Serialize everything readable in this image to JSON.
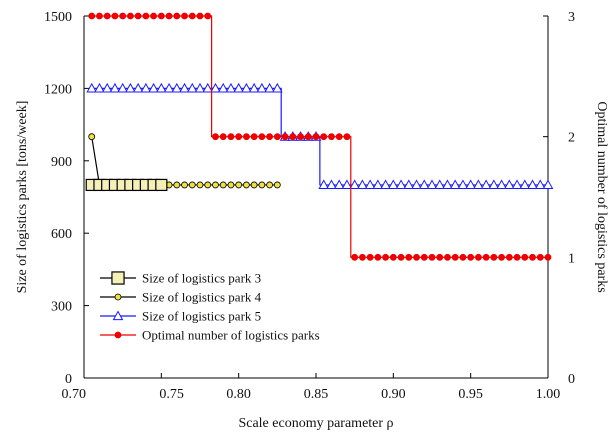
{
  "chart_data": {
    "type": "line",
    "xlabel": "Scale economy parameter ρ",
    "ylabel_left": "Size of logistics parks  [tons/week]",
    "ylabel_right": "Optimal number of logistics parks",
    "xlim": [
      0.7,
      1.0
    ],
    "ylim_left": [
      0,
      1500
    ],
    "ylim_right": [
      0,
      3
    ],
    "x_ticks": [
      0.7,
      0.75,
      0.8,
      0.85,
      0.9,
      0.95,
      1.0
    ],
    "x_tick_labels": [
      "0.70",
      "0.75",
      "0.80",
      "0.85",
      "0.90",
      "0.95",
      "1.00"
    ],
    "y_left_ticks": [
      0,
      300,
      600,
      900,
      1200,
      1500
    ],
    "y_left_tick_labels": [
      "0",
      "300",
      "600",
      "900",
      "1200",
      "1500"
    ],
    "y_right_ticks": [
      0,
      1,
      2,
      3
    ],
    "y_right_tick_labels": [
      "0",
      "1",
      "2",
      "3"
    ],
    "legend_position": "lower-left",
    "series": [
      {
        "name": "Size of logistics park 3",
        "axis": "left",
        "color": "#000000",
        "marker": "square",
        "marker_fill": "#f5f0b8",
        "x": [
          0.705,
          0.71,
          0.715,
          0.72,
          0.725,
          0.73,
          0.735,
          0.74,
          0.745,
          0.75
        ],
        "y": [
          800,
          800,
          800,
          800,
          800,
          800,
          800,
          800,
          800,
          800
        ]
      },
      {
        "name": "Size of logistics park 4",
        "axis": "left",
        "color": "#000000",
        "marker": "circle",
        "marker_fill": "#f0e040",
        "x": [
          0.705,
          0.71,
          0.715,
          0.72,
          0.725,
          0.73,
          0.735,
          0.74,
          0.745,
          0.75,
          0.755,
          0.76,
          0.765,
          0.77,
          0.775,
          0.78,
          0.785,
          0.79,
          0.795,
          0.8,
          0.805,
          0.81,
          0.815,
          0.82,
          0.825
        ],
        "y": [
          1000,
          800,
          800,
          800,
          800,
          800,
          800,
          800,
          800,
          800,
          800,
          800,
          800,
          800,
          800,
          800,
          800,
          800,
          800,
          800,
          800,
          800,
          800,
          800,
          800
        ]
      },
      {
        "name": "Size of logistics park 5",
        "axis": "left",
        "color": "#1a1aff",
        "marker": "triangle",
        "marker_fill": "#ffffff",
        "x": [
          0.705,
          0.71,
          0.715,
          0.72,
          0.725,
          0.73,
          0.735,
          0.74,
          0.745,
          0.75,
          0.755,
          0.76,
          0.765,
          0.77,
          0.775,
          0.78,
          0.785,
          0.79,
          0.795,
          0.8,
          0.805,
          0.81,
          0.815,
          0.82,
          0.825,
          0.83,
          0.835,
          0.84,
          0.845,
          0.85,
          0.855,
          0.86,
          0.865,
          0.87,
          0.875,
          0.88,
          0.885,
          0.89,
          0.895,
          0.9,
          0.905,
          0.91,
          0.915,
          0.92,
          0.925,
          0.93,
          0.935,
          0.94,
          0.945,
          0.95,
          0.955,
          0.96,
          0.965,
          0.97,
          0.975,
          0.98,
          0.985,
          0.99,
          0.995,
          1.0
        ],
        "y": [
          1200,
          1200,
          1200,
          1200,
          1200,
          1200,
          1200,
          1200,
          1200,
          1200,
          1200,
          1200,
          1200,
          1200,
          1200,
          1200,
          1200,
          1200,
          1200,
          1200,
          1200,
          1200,
          1200,
          1200,
          1200,
          1000,
          1000,
          1000,
          1000,
          1000,
          800,
          800,
          800,
          800,
          800,
          800,
          800,
          800,
          800,
          800,
          800,
          800,
          800,
          800,
          800,
          800,
          800,
          800,
          800,
          800,
          800,
          800,
          800,
          800,
          800,
          800,
          800,
          800,
          800,
          800
        ]
      },
      {
        "name": "Optimal number of logistics parks",
        "axis": "right",
        "color": "#ee0000",
        "marker": "circle",
        "marker_fill": "#ee0000",
        "x": [
          0.705,
          0.71,
          0.715,
          0.72,
          0.725,
          0.73,
          0.735,
          0.74,
          0.745,
          0.75,
          0.755,
          0.76,
          0.765,
          0.77,
          0.775,
          0.78,
          0.785,
          0.79,
          0.795,
          0.8,
          0.805,
          0.81,
          0.815,
          0.82,
          0.825,
          0.83,
          0.835,
          0.84,
          0.845,
          0.85,
          0.855,
          0.86,
          0.865,
          0.87,
          0.875,
          0.88,
          0.885,
          0.89,
          0.895,
          0.9,
          0.905,
          0.91,
          0.915,
          0.92,
          0.925,
          0.93,
          0.935,
          0.94,
          0.945,
          0.95,
          0.955,
          0.96,
          0.965,
          0.97,
          0.975,
          0.98,
          0.985,
          0.99,
          0.995,
          1.0
        ],
        "y": [
          3,
          3,
          3,
          3,
          3,
          3,
          3,
          3,
          3,
          3,
          3,
          3,
          3,
          3,
          3,
          3,
          2,
          2,
          2,
          2,
          2,
          2,
          2,
          2,
          2,
          2,
          2,
          2,
          2,
          2,
          2,
          2,
          2,
          2,
          1,
          1,
          1,
          1,
          1,
          1,
          1,
          1,
          1,
          1,
          1,
          1,
          1,
          1,
          1,
          1,
          1,
          1,
          1,
          1,
          1,
          1,
          1,
          1,
          1,
          1
        ]
      }
    ]
  }
}
